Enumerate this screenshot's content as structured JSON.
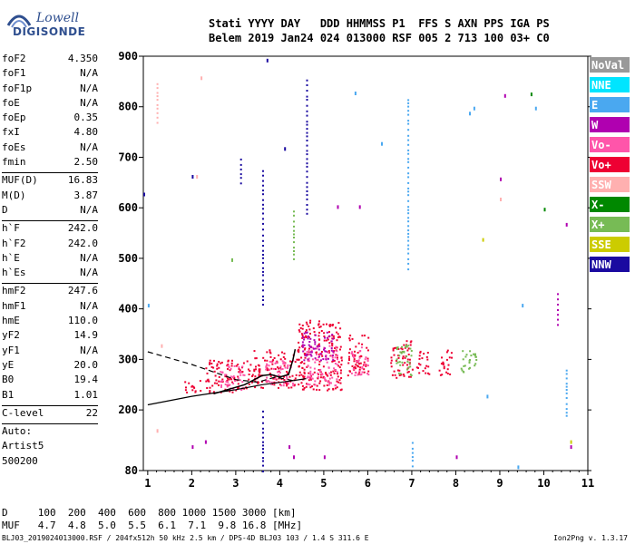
{
  "logo": {
    "line1": "Lowell",
    "line2": "DIGISONDE"
  },
  "header": {
    "line1": "Stati YYYY DAY   DDD HHMMSS P1  FFS S AXN PPS IGA PS",
    "line2": "Belem 2019 Jan24 024 013000 RSF 005 2 713 100 03+ C0"
  },
  "params": {
    "group1": [
      {
        "name": "foF2",
        "value": "4.350"
      },
      {
        "name": "foF1",
        "value": "N/A"
      },
      {
        "name": "foF1p",
        "value": "N/A"
      },
      {
        "name": "foE",
        "value": "N/A"
      },
      {
        "name": "foEp",
        "value": "0.35"
      },
      {
        "name": "fxI",
        "value": "4.80"
      },
      {
        "name": "foEs",
        "value": "N/A"
      },
      {
        "name": "fmin",
        "value": "2.50"
      }
    ],
    "group2": [
      {
        "name": "MUF(D)",
        "value": "16.83"
      },
      {
        "name": "M(D)",
        "value": "3.87"
      },
      {
        "name": "D",
        "value": "N/A"
      }
    ],
    "group3": [
      {
        "name": "h`F",
        "value": "242.0"
      },
      {
        "name": "h`F2",
        "value": "242.0"
      },
      {
        "name": "h`E",
        "value": "N/A"
      },
      {
        "name": "h`Es",
        "value": "N/A"
      }
    ],
    "group4": [
      {
        "name": "hmF2",
        "value": "247.6"
      },
      {
        "name": "hmF1",
        "value": "N/A"
      },
      {
        "name": "hmE",
        "value": "110.0"
      },
      {
        "name": "yF2",
        "value": "14.9"
      },
      {
        "name": "yF1",
        "value": "N/A"
      },
      {
        "name": "yE",
        "value": "20.0"
      },
      {
        "name": "B0",
        "value": "19.4"
      },
      {
        "name": "B1",
        "value": "1.01"
      }
    ],
    "clevel": {
      "name": "C-level",
      "value": "22"
    },
    "auto": [
      "Auto:",
      "Artist5",
      "500200"
    ]
  },
  "footer": {
    "line1": "D     100  200  400  600  800 1000 1500 3000 [km]",
    "line2": "MUF   4.7  4.8  5.0  5.5  6.1  7.1  9.8 16.8 [MHz]",
    "line3": "BLJ03_2019024013000.RSF / 204fx512h 50 kHz 2.5 km / DPS-4D BLJ03 103 / 1.4 S 311.6 E",
    "version": "Ion2Png v. 1.3.17"
  },
  "chart_data": {
    "type": "scatter",
    "title": "",
    "xlabel": "",
    "ylabel": "",
    "xlim": [
      0.9,
      11.0
    ],
    "ylim": [
      80,
      900
    ],
    "x_ticks": [
      1,
      2,
      3,
      4,
      5,
      6,
      7,
      8,
      9,
      10,
      11
    ],
    "y_ticks": [
      80,
      200,
      300,
      400,
      500,
      600,
      700,
      800,
      900
    ],
    "legend": [
      {
        "name": "NoVal",
        "color": "#999999",
        "text_color": "#ffffff"
      },
      {
        "name": "NNE",
        "color": "#00e5ff",
        "text_color": "#ffffff"
      },
      {
        "name": "E",
        "color": "#4aa8f0",
        "text_color": "#ffffff"
      },
      {
        "name": "W",
        "color": "#b000b0",
        "text_color": "#ffffff"
      },
      {
        "name": "Vo-",
        "color": "#ff55aa",
        "text_color": "#ffffff"
      },
      {
        "name": "Vo+",
        "color": "#ee0033",
        "text_color": "#ffffff"
      },
      {
        "name": "SSW",
        "color": "#ffb0b0",
        "text_color": "#ffffff"
      },
      {
        "name": "X-",
        "color": "#008800",
        "text_color": "#ffffff"
      },
      {
        "name": "X+",
        "color": "#77bb55",
        "text_color": "#ffffff"
      },
      {
        "name": "SSE",
        "color": "#cccc00",
        "text_color": "#ffffff"
      },
      {
        "name": "NNW",
        "color": "#1a0aa0",
        "text_color": "#ffffff"
      }
    ],
    "legend_placement": "right",
    "clusters": [
      {
        "x": [
          1.8,
          2.2
        ],
        "y": [
          235,
          260
        ],
        "color": "Vo+"
      },
      {
        "x": [
          2.3,
          3.4
        ],
        "y": [
          235,
          300
        ],
        "color": "Vo+"
      },
      {
        "x": [
          2.6,
          3.2
        ],
        "y": [
          240,
          290
        ],
        "color": "Vo-"
      },
      {
        "x": [
          3.4,
          4.6
        ],
        "y": [
          245,
          320
        ],
        "color": "Vo+"
      },
      {
        "x": [
          3.6,
          4.3
        ],
        "y": [
          250,
          300
        ],
        "color": "Vo-"
      },
      {
        "x": [
          4.4,
          5.4
        ],
        "y": [
          240,
          380
        ],
        "color": "Vo+"
      },
      {
        "x": [
          4.6,
          5.3
        ],
        "y": [
          250,
          330
        ],
        "color": "Vo-"
      },
      {
        "x": [
          5.5,
          6.0
        ],
        "y": [
          265,
          350
        ],
        "color": "Vo+"
      },
      {
        "x": [
          5.6,
          6.0
        ],
        "y": [
          270,
          330
        ],
        "color": "Vo-"
      },
      {
        "x": [
          6.5,
          7.0
        ],
        "y": [
          265,
          340
        ],
        "color": "Vo+"
      },
      {
        "x": [
          6.6,
          7.0
        ],
        "y": [
          270,
          330
        ],
        "color": "X+"
      },
      {
        "x": [
          7.1,
          7.4
        ],
        "y": [
          270,
          320
        ],
        "color": "Vo+"
      },
      {
        "x": [
          7.6,
          7.9
        ],
        "y": [
          270,
          320
        ],
        "color": "Vo+"
      },
      {
        "x": [
          8.1,
          8.5
        ],
        "y": [
          275,
          320
        ],
        "color": "X+"
      },
      {
        "x": [
          4.5,
          5.2
        ],
        "y": [
          300,
          360
        ],
        "color": "W"
      }
    ],
    "columns": [
      {
        "x": 1.2,
        "y": [
          770,
          850
        ],
        "color": "SSW"
      },
      {
        "x": 3.6,
        "y": [
          410,
          680
        ],
        "color": "NNW"
      },
      {
        "x": 4.6,
        "y": [
          590,
          860
        ],
        "color": "NNW"
      },
      {
        "x": 6.9,
        "y": [
          480,
          820
        ],
        "color": "E"
      },
      {
        "x": 3.6,
        "y": [
          80,
          200
        ],
        "color": "NNW"
      },
      {
        "x": 4.3,
        "y": [
          500,
          600
        ],
        "color": "X+"
      },
      {
        "x": 10.3,
        "y": [
          370,
          440
        ],
        "color": "W"
      },
      {
        "x": 10.5,
        "y": [
          190,
          280
        ],
        "color": "E"
      },
      {
        "x": 3.1,
        "y": [
          650,
          700
        ],
        "color": "NNW"
      },
      {
        "x": 7.0,
        "y": [
          90,
          140
        ],
        "color": "E"
      }
    ],
    "points": [
      {
        "x": 0.9,
        "y": 630,
        "color": "NNW"
      },
      {
        "x": 2.0,
        "y": 665,
        "color": "NNW"
      },
      {
        "x": 2.1,
        "y": 665,
        "color": "SSW"
      },
      {
        "x": 2.2,
        "y": 860,
        "color": "SSW"
      },
      {
        "x": 3.7,
        "y": 895,
        "color": "NNW"
      },
      {
        "x": 4.1,
        "y": 720,
        "color": "NNW"
      },
      {
        "x": 5.3,
        "y": 605,
        "color": "W"
      },
      {
        "x": 5.8,
        "y": 605,
        "color": "W"
      },
      {
        "x": 9.0,
        "y": 620,
        "color": "SSW"
      },
      {
        "x": 9.0,
        "y": 660,
        "color": "W"
      },
      {
        "x": 9.1,
        "y": 825,
        "color": "W"
      },
      {
        "x": 9.7,
        "y": 828,
        "color": "X-"
      },
      {
        "x": 10.0,
        "y": 600,
        "color": "X-"
      },
      {
        "x": 10.5,
        "y": 570,
        "color": "W"
      },
      {
        "x": 10.6,
        "y": 130,
        "color": "W"
      },
      {
        "x": 2.9,
        "y": 500,
        "color": "X+"
      },
      {
        "x": 1.3,
        "y": 330,
        "color": "SSW"
      },
      {
        "x": 1.2,
        "y": 162,
        "color": "SSW"
      },
      {
        "x": 2.0,
        "y": 130,
        "color": "W"
      },
      {
        "x": 2.3,
        "y": 140,
        "color": "W"
      },
      {
        "x": 4.2,
        "y": 130,
        "color": "W"
      },
      {
        "x": 4.3,
        "y": 110,
        "color": "W"
      },
      {
        "x": 5.0,
        "y": 110,
        "color": "W"
      },
      {
        "x": 8.0,
        "y": 110,
        "color": "W"
      },
      {
        "x": 8.4,
        "y": 800,
        "color": "E"
      },
      {
        "x": 8.3,
        "y": 790,
        "color": "E"
      },
      {
        "x": 9.8,
        "y": 800,
        "color": "E"
      },
      {
        "x": 9.5,
        "y": 410,
        "color": "E"
      },
      {
        "x": 6.3,
        "y": 730,
        "color": "E"
      },
      {
        "x": 5.7,
        "y": 830,
        "color": "E"
      },
      {
        "x": 8.7,
        "y": 230,
        "color": "E"
      },
      {
        "x": 9.4,
        "y": 90,
        "color": "E"
      },
      {
        "x": 8.6,
        "y": 540,
        "color": "SSE"
      },
      {
        "x": 10.6,
        "y": 140,
        "color": "SSE"
      },
      {
        "x": 1.0,
        "y": 410,
        "color": "E"
      }
    ],
    "profile_solid": [
      [
        1.0,
        210
      ],
      [
        2.0,
        227
      ],
      [
        3.0,
        240
      ],
      [
        3.6,
        250
      ],
      [
        4.3,
        258
      ],
      [
        4.6,
        262
      ]
    ],
    "profile_trace_solid": [
      [
        2.5,
        232
      ],
      [
        3.2,
        250
      ],
      [
        3.6,
        268
      ],
      [
        3.8,
        270
      ],
      [
        4.0,
        265
      ],
      [
        4.2,
        270
      ],
      [
        4.3,
        300
      ],
      [
        4.35,
        320
      ]
    ],
    "profile_dashed": [
      [
        1.0,
        315
      ],
      [
        2.0,
        290
      ],
      [
        3.0,
        260
      ],
      [
        3.5,
        255
      ],
      [
        3.9,
        265
      ],
      [
        4.3,
        258
      ]
    ]
  }
}
